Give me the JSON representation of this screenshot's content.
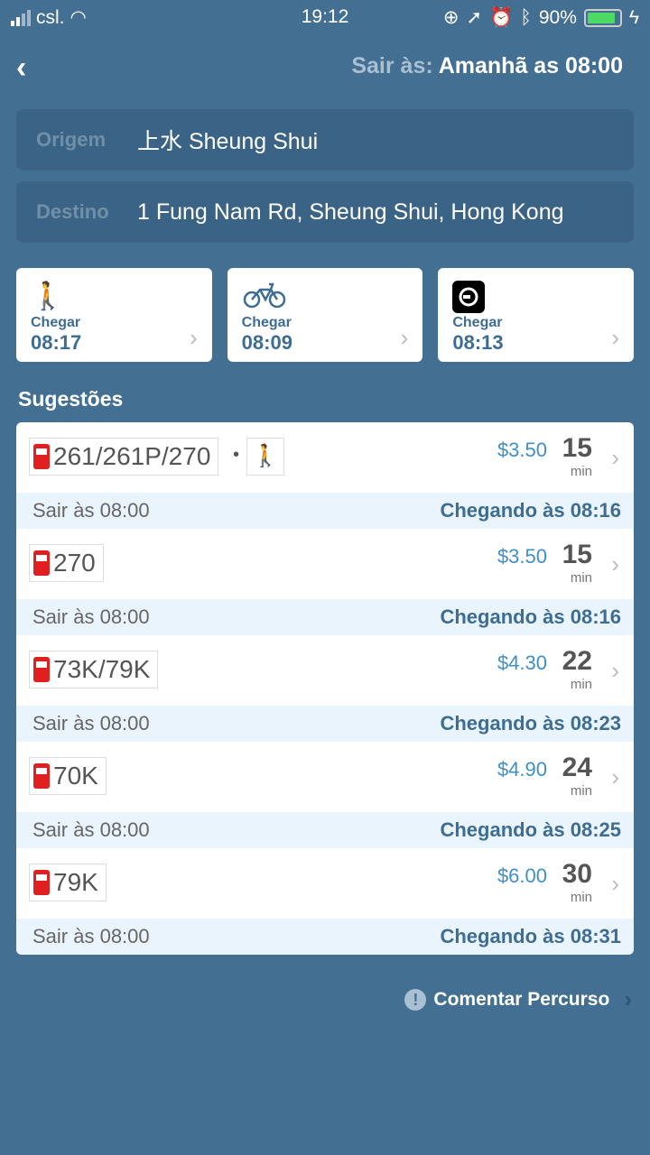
{
  "status": {
    "carrier": "csl.",
    "time": "19:12",
    "battery": "90%",
    "battery_level": 0.9
  },
  "header": {
    "depart_label": "Sair às:",
    "depart_value": "Amanhã as 08:00"
  },
  "origin": {
    "label": "Origem",
    "value": "上水 Sheung Shui"
  },
  "destination": {
    "label": "Destino",
    "value": "1 Fung Nam Rd, Sheung Shui, Hong Kong"
  },
  "modes": [
    {
      "icon": "walk-icon",
      "label": "Chegar",
      "time": "08:17"
    },
    {
      "icon": "bicycle-icon",
      "label": "Chegar",
      "time": "08:09"
    },
    {
      "icon": "uber-icon",
      "label": "Chegar",
      "time": "08:13"
    }
  ],
  "section_title": "Sugestões",
  "routes": [
    {
      "lines": "261/261P/270",
      "walk": true,
      "price": "$3.50",
      "duration": "15",
      "unit": "min",
      "depart": "Sair às 08:00",
      "arrive": "Chegando às 08:16"
    },
    {
      "lines": "270",
      "walk": false,
      "price": "$3.50",
      "duration": "15",
      "unit": "min",
      "depart": "Sair às 08:00",
      "arrive": "Chegando às 08:16"
    },
    {
      "lines": "73K/79K",
      "walk": false,
      "price": "$4.30",
      "duration": "22",
      "unit": "min",
      "depart": "Sair às 08:00",
      "arrive": "Chegando às 08:23"
    },
    {
      "lines": "70K",
      "walk": false,
      "price": "$4.90",
      "duration": "24",
      "unit": "min",
      "depart": "Sair às 08:00",
      "arrive": "Chegando às 08:25"
    },
    {
      "lines": "79K",
      "walk": false,
      "price": "$6.00",
      "duration": "30",
      "unit": "min",
      "depart": "Sair às 08:00",
      "arrive": "Chegando às 08:31"
    }
  ],
  "feedback": {
    "label": "Comentar Percurso"
  },
  "colors": {
    "background": "#436f93",
    "price": "#3f8fca",
    "bus": "#e02020"
  }
}
